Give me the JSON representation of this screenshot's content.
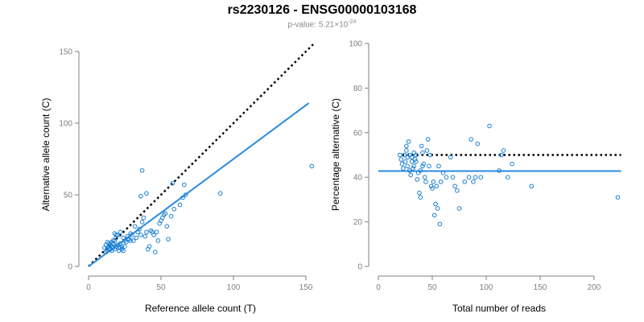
{
  "header": {
    "title": "rs2230126 - ENSG00000103168",
    "pvalue_label": "p-value: 5.21",
    "pvalue_times": "×10",
    "pvalue_exp": "-24"
  },
  "colors": {
    "points": "#1a7fd4",
    "fit_line": "#2a8be0",
    "reference_line": "#000000",
    "axis": "#7f7f7f",
    "tick_label": "#7f7f7f"
  },
  "chart_data": [
    {
      "type": "scatter",
      "xlabel": "Reference allele count (T)",
      "ylabel": "Alternative allele count (C)",
      "xlim": [
        0,
        155
      ],
      "ylim": [
        0,
        150
      ],
      "xticks": [
        0,
        50,
        100,
        150
      ],
      "yticks": [
        0,
        50,
        100,
        150
      ],
      "grid": false,
      "points": [
        [
          12,
          15
        ],
        [
          13,
          13
        ],
        [
          14,
          16
        ],
        [
          15,
          12
        ],
        [
          16,
          14
        ],
        [
          17,
          13
        ],
        [
          13,
          11
        ],
        [
          14,
          12
        ],
        [
          11,
          13
        ],
        [
          12,
          10
        ],
        [
          15,
          15
        ],
        [
          16,
          11
        ],
        [
          18,
          12
        ],
        [
          19,
          14
        ],
        [
          17,
          16
        ],
        [
          18,
          18
        ],
        [
          20,
          15
        ],
        [
          21,
          13
        ],
        [
          22,
          16
        ],
        [
          23,
          12
        ],
        [
          19,
          20
        ],
        [
          20,
          22
        ],
        [
          22,
          24
        ],
        [
          24,
          20
        ],
        [
          25,
          18
        ],
        [
          26,
          17
        ],
        [
          27,
          21
        ],
        [
          28,
          19
        ],
        [
          29,
          23
        ],
        [
          30,
          22
        ],
        [
          21,
          11
        ],
        [
          23,
          14
        ],
        [
          24,
          11
        ],
        [
          25,
          14
        ],
        [
          13,
          17
        ],
        [
          14,
          14
        ],
        [
          16,
          17
        ],
        [
          17,
          18
        ],
        [
          18,
          23
        ],
        [
          19,
          22
        ],
        [
          31,
          18
        ],
        [
          33,
          20
        ],
        [
          34,
          24
        ],
        [
          35,
          26
        ],
        [
          36,
          22
        ],
        [
          37,
          31
        ],
        [
          38,
          34
        ],
        [
          39,
          21
        ],
        [
          40,
          24
        ],
        [
          41,
          12
        ],
        [
          42,
          14
        ],
        [
          43,
          25
        ],
        [
          44,
          24
        ],
        [
          45,
          22
        ],
        [
          46,
          10
        ],
        [
          47,
          24
        ],
        [
          48,
          18
        ],
        [
          49,
          30
        ],
        [
          50,
          32
        ],
        [
          51,
          34
        ],
        [
          52,
          36
        ],
        [
          53,
          37
        ],
        [
          54,
          28
        ],
        [
          55,
          19
        ],
        [
          57,
          35
        ],
        [
          58,
          58
        ],
        [
          59,
          40
        ],
        [
          63,
          43
        ],
        [
          65,
          48
        ],
        [
          66,
          57
        ],
        [
          67,
          50
        ],
        [
          40,
          51
        ],
        [
          36,
          49
        ],
        [
          37,
          67
        ],
        [
          91,
          51
        ],
        [
          154,
          70
        ],
        [
          29,
          18
        ],
        [
          32,
          28
        ],
        [
          27,
          19
        ],
        [
          22,
          13
        ]
      ],
      "fit_line": [
        [
          0,
          0
        ],
        [
          152,
          114
        ]
      ],
      "reference_line": [
        [
          0,
          0
        ],
        [
          155,
          155
        ]
      ]
    },
    {
      "type": "scatter",
      "xlabel": "Total number of reads",
      "ylabel": "Percentage alternative (C)",
      "xlim": [
        0,
        225
      ],
      "ylim": [
        0,
        100
      ],
      "xticks": [
        0,
        50,
        100,
        150,
        200
      ],
      "yticks": [
        0,
        20,
        40,
        60,
        80,
        100
      ],
      "grid": false,
      "points": [
        [
          20,
          50
        ],
        [
          21,
          48
        ],
        [
          22,
          46
        ],
        [
          23,
          44
        ],
        [
          24,
          50
        ],
        [
          25,
          47
        ],
        [
          26,
          52
        ],
        [
          27,
          45
        ],
        [
          28,
          56
        ],
        [
          29,
          43
        ],
        [
          30,
          41
        ],
        [
          31,
          49
        ],
        [
          32,
          44
        ],
        [
          33,
          51
        ],
        [
          34,
          48
        ],
        [
          35,
          47
        ],
        [
          36,
          39
        ],
        [
          37,
          42
        ],
        [
          38,
          33
        ],
        [
          39,
          31
        ],
        [
          40,
          54
        ],
        [
          41,
          51
        ],
        [
          42,
          46
        ],
        [
          43,
          40
        ],
        [
          44,
          38
        ],
        [
          45,
          52
        ],
        [
          46,
          57
        ],
        [
          47,
          45
        ],
        [
          48,
          50
        ],
        [
          49,
          36
        ],
        [
          50,
          35
        ],
        [
          51,
          38
        ],
        [
          52,
          23
        ],
        [
          53,
          28
        ],
        [
          54,
          36
        ],
        [
          55,
          26
        ],
        [
          56,
          45
        ],
        [
          57,
          19
        ],
        [
          58,
          38
        ],
        [
          60,
          42
        ],
        [
          63,
          40
        ],
        [
          67,
          49
        ],
        [
          69,
          40
        ],
        [
          71,
          36
        ],
        [
          73,
          34
        ],
        [
          75,
          26
        ],
        [
          80,
          38
        ],
        [
          84,
          40
        ],
        [
          86,
          57
        ],
        [
          88,
          38
        ],
        [
          90,
          40
        ],
        [
          92,
          55
        ],
        [
          95,
          40
        ],
        [
          103,
          63
        ],
        [
          112,
          43
        ],
        [
          114,
          50
        ],
        [
          116,
          52
        ],
        [
          120,
          40
        ],
        [
          124,
          46
        ],
        [
          142,
          36
        ],
        [
          222,
          31
        ],
        [
          26,
          54
        ],
        [
          27,
          49
        ],
        [
          29,
          50
        ],
        [
          31,
          47
        ],
        [
          33,
          45
        ],
        [
          35,
          50
        ],
        [
          39,
          43
        ],
        [
          41,
          45
        ]
      ],
      "fit_line": [
        [
          0,
          42.8
        ],
        [
          225,
          42.8
        ]
      ],
      "reference_line": [
        [
          22,
          50
        ],
        [
          225,
          50
        ]
      ]
    }
  ]
}
